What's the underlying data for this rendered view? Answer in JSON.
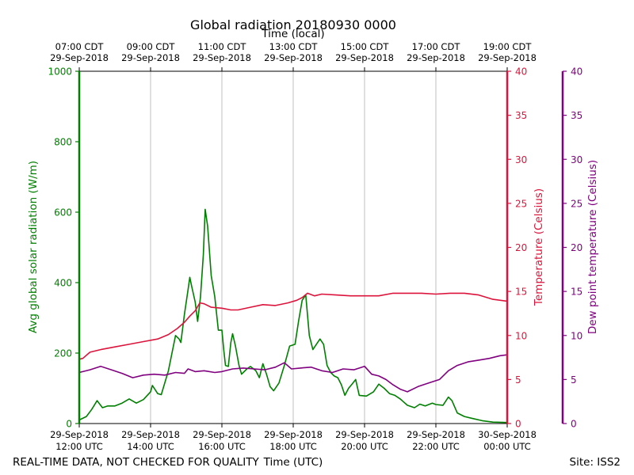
{
  "chart_data": {
    "type": "line",
    "title": "Global radiation 20180930 0000",
    "top_axis_label": "Time (local)",
    "xlabel": "Time (UTC)",
    "ylabel_left": "Avg global solar radiation (W/m)",
    "ylabel_right1": "Temperature (Celsius)",
    "ylabel_right2": "Dew point temperature (Celsius)",
    "footer_left": "REAL-TIME DATA, NOT CHECKED FOR QUALITY",
    "footer_right": "Site: ISS2",
    "xlim_hours_utc": [
      12,
      24
    ],
    "ylim_left": [
      0,
      1000
    ],
    "ylim_right1": [
      0,
      40
    ],
    "ylim_right2": [
      0,
      40
    ],
    "grid": "vertical",
    "colors": {
      "radiation": "#008000",
      "temperature": "#dc143c",
      "dewpoint": "#800080"
    },
    "yticks_left": [
      "0",
      "200",
      "400",
      "600",
      "800",
      "1000"
    ],
    "yticks_right": [
      "0",
      "5",
      "10",
      "15",
      "20",
      "25",
      "30",
      "35",
      "40"
    ],
    "xticks_bottom": [
      {
        "x": 12,
        "date": "29-Sep-2018",
        "time": "12:00 UTC"
      },
      {
        "x": 14,
        "date": "29-Sep-2018",
        "time": "14:00 UTC"
      },
      {
        "x": 16,
        "date": "29-Sep-2018",
        "time": "16:00 UTC"
      },
      {
        "x": 18,
        "date": "29-Sep-2018",
        "time": "18:00 UTC"
      },
      {
        "x": 20,
        "date": "29-Sep-2018",
        "time": "20:00 UTC"
      },
      {
        "x": 22,
        "date": "29-Sep-2018",
        "time": "22:00 UTC"
      },
      {
        "x": 24,
        "date": "30-Sep-2018",
        "time": "00:00 UTC"
      }
    ],
    "xticks_top": [
      {
        "x": 12,
        "time": "07:00 CDT",
        "date": "29-Sep-2018"
      },
      {
        "x": 14,
        "time": "09:00 CDT",
        "date": "29-Sep-2018"
      },
      {
        "x": 16,
        "time": "11:00 CDT",
        "date": "29-Sep-2018"
      },
      {
        "x": 18,
        "time": "13:00 CDT",
        "date": "29-Sep-2018"
      },
      {
        "x": 20,
        "time": "15:00 CDT",
        "date": "29-Sep-2018"
      },
      {
        "x": 22,
        "time": "17:00 CDT",
        "date": "29-Sep-2018"
      },
      {
        "x": 24,
        "time": "19:00 CDT",
        "date": "29-Sep-2018"
      }
    ],
    "series": [
      {
        "key": "radiation",
        "axis": "left",
        "points": [
          [
            12.0,
            10
          ],
          [
            12.2,
            20
          ],
          [
            12.35,
            40
          ],
          [
            12.5,
            65
          ],
          [
            12.65,
            45
          ],
          [
            12.8,
            50
          ],
          [
            13.0,
            50
          ],
          [
            13.2,
            58
          ],
          [
            13.4,
            70
          ],
          [
            13.6,
            58
          ],
          [
            13.8,
            68
          ],
          [
            14.0,
            90
          ],
          [
            14.05,
            108
          ],
          [
            14.2,
            85
          ],
          [
            14.3,
            82
          ],
          [
            14.5,
            150
          ],
          [
            14.6,
            200
          ],
          [
            14.7,
            250
          ],
          [
            14.8,
            240
          ],
          [
            14.85,
            230
          ],
          [
            14.95,
            310
          ],
          [
            15.05,
            380
          ],
          [
            15.1,
            415
          ],
          [
            15.15,
            390
          ],
          [
            15.25,
            345
          ],
          [
            15.32,
            290
          ],
          [
            15.4,
            360
          ],
          [
            15.48,
            480
          ],
          [
            15.53,
            608
          ],
          [
            15.6,
            560
          ],
          [
            15.7,
            420
          ],
          [
            15.8,
            360
          ],
          [
            15.9,
            265
          ],
          [
            16.0,
            265
          ],
          [
            16.05,
            210
          ],
          [
            16.1,
            165
          ],
          [
            16.18,
            162
          ],
          [
            16.25,
            230
          ],
          [
            16.3,
            255
          ],
          [
            16.38,
            220
          ],
          [
            16.48,
            165
          ],
          [
            16.55,
            140
          ],
          [
            16.7,
            155
          ],
          [
            16.8,
            162
          ],
          [
            16.95,
            150
          ],
          [
            17.05,
            130
          ],
          [
            17.15,
            170
          ],
          [
            17.25,
            140
          ],
          [
            17.35,
            105
          ],
          [
            17.45,
            93
          ],
          [
            17.6,
            115
          ],
          [
            17.75,
            165
          ],
          [
            17.9,
            220
          ],
          [
            18.05,
            225
          ],
          [
            18.15,
            290
          ],
          [
            18.25,
            350
          ],
          [
            18.35,
            365
          ],
          [
            18.45,
            250
          ],
          [
            18.55,
            210
          ],
          [
            18.65,
            225
          ],
          [
            18.75,
            240
          ],
          [
            18.85,
            225
          ],
          [
            18.95,
            165
          ],
          [
            19.05,
            145
          ],
          [
            19.15,
            135
          ],
          [
            19.25,
            130
          ],
          [
            19.35,
            110
          ],
          [
            19.45,
            80
          ],
          [
            19.55,
            100
          ],
          [
            19.65,
            112
          ],
          [
            19.75,
            125
          ],
          [
            19.85,
            80
          ],
          [
            20.05,
            78
          ],
          [
            20.25,
            90
          ],
          [
            20.4,
            112
          ],
          [
            20.55,
            100
          ],
          [
            20.7,
            85
          ],
          [
            20.85,
            80
          ],
          [
            21.0,
            70
          ],
          [
            21.2,
            52
          ],
          [
            21.4,
            45
          ],
          [
            21.55,
            55
          ],
          [
            21.7,
            50
          ],
          [
            21.9,
            58
          ],
          [
            22.0,
            54
          ],
          [
            22.2,
            52
          ],
          [
            22.35,
            75
          ],
          [
            22.45,
            65
          ],
          [
            22.6,
            30
          ],
          [
            22.8,
            20
          ],
          [
            23.0,
            15
          ],
          [
            23.3,
            8
          ],
          [
            23.6,
            4
          ],
          [
            24.0,
            3
          ]
        ]
      },
      {
        "key": "temperature",
        "axis": "right1",
        "points": [
          [
            12.0,
            7.3
          ],
          [
            12.1,
            7.4
          ],
          [
            12.3,
            8.1
          ],
          [
            12.6,
            8.4
          ],
          [
            13.0,
            8.7
          ],
          [
            13.4,
            9.0
          ],
          [
            13.8,
            9.3
          ],
          [
            14.2,
            9.6
          ],
          [
            14.5,
            10.1
          ],
          [
            14.75,
            10.8
          ],
          [
            14.95,
            11.5
          ],
          [
            15.1,
            12.2
          ],
          [
            15.25,
            12.8
          ],
          [
            15.38,
            13.7
          ],
          [
            15.5,
            13.6
          ],
          [
            15.7,
            13.2
          ],
          [
            16.0,
            13.1
          ],
          [
            16.25,
            12.9
          ],
          [
            16.45,
            12.9
          ],
          [
            16.8,
            13.2
          ],
          [
            17.15,
            13.5
          ],
          [
            17.5,
            13.4
          ],
          [
            17.85,
            13.7
          ],
          [
            18.1,
            14.0
          ],
          [
            18.25,
            14.3
          ],
          [
            18.4,
            14.8
          ],
          [
            18.6,
            14.5
          ],
          [
            18.8,
            14.7
          ],
          [
            19.2,
            14.6
          ],
          [
            19.6,
            14.5
          ],
          [
            20.0,
            14.5
          ],
          [
            20.4,
            14.5
          ],
          [
            20.8,
            14.8
          ],
          [
            21.2,
            14.8
          ],
          [
            21.6,
            14.8
          ],
          [
            22.0,
            14.7
          ],
          [
            22.4,
            14.8
          ],
          [
            22.8,
            14.8
          ],
          [
            23.2,
            14.6
          ],
          [
            23.6,
            14.1
          ],
          [
            24.0,
            13.9
          ]
        ]
      },
      {
        "key": "dewpoint",
        "axis": "right2",
        "points": [
          [
            12.0,
            5.8
          ],
          [
            12.3,
            6.1
          ],
          [
            12.6,
            6.5
          ],
          [
            12.9,
            6.1
          ],
          [
            13.2,
            5.7
          ],
          [
            13.5,
            5.2
          ],
          [
            13.8,
            5.5
          ],
          [
            14.1,
            5.6
          ],
          [
            14.4,
            5.5
          ],
          [
            14.7,
            5.8
          ],
          [
            14.95,
            5.7
          ],
          [
            15.05,
            6.2
          ],
          [
            15.25,
            5.9
          ],
          [
            15.5,
            6.0
          ],
          [
            15.8,
            5.8
          ],
          [
            16.0,
            5.9
          ],
          [
            16.3,
            6.2
          ],
          [
            16.6,
            6.3
          ],
          [
            16.9,
            6.2
          ],
          [
            17.2,
            6.1
          ],
          [
            17.5,
            6.4
          ],
          [
            17.75,
            6.9
          ],
          [
            17.95,
            6.2
          ],
          [
            18.2,
            6.3
          ],
          [
            18.5,
            6.4
          ],
          [
            18.8,
            6.0
          ],
          [
            19.1,
            5.8
          ],
          [
            19.4,
            6.2
          ],
          [
            19.7,
            6.1
          ],
          [
            20.0,
            6.5
          ],
          [
            20.2,
            5.6
          ],
          [
            20.4,
            5.4
          ],
          [
            20.6,
            5.0
          ],
          [
            20.8,
            4.4
          ],
          [
            21.0,
            3.9
          ],
          [
            21.2,
            3.6
          ],
          [
            21.5,
            4.2
          ],
          [
            21.8,
            4.6
          ],
          [
            22.1,
            5.0
          ],
          [
            22.35,
            6.0
          ],
          [
            22.6,
            6.6
          ],
          [
            22.9,
            7.0
          ],
          [
            23.2,
            7.2
          ],
          [
            23.5,
            7.4
          ],
          [
            23.8,
            7.7
          ],
          [
            24.0,
            7.8
          ]
        ]
      }
    ]
  }
}
